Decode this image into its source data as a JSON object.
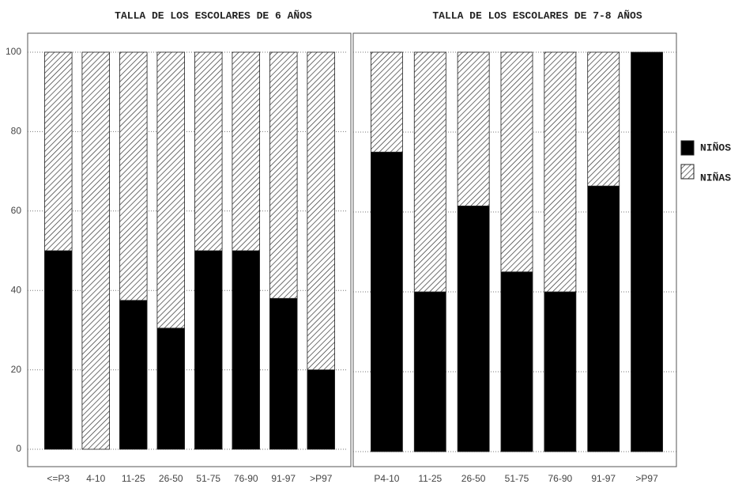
{
  "chart_data": [
    {
      "type": "bar",
      "stacked": true,
      "title": "TALLA DE LOS ESCOLARES DE 6 AÑOS",
      "categories": [
        "<=P3",
        "4-10",
        "11-25",
        "26-50",
        "51-75",
        "76-90",
        "91-97",
        ">P97"
      ],
      "series": [
        {
          "name": "NIÑOS",
          "color": "#000000",
          "values": [
            50,
            0,
            37.5,
            30.5,
            50,
            50,
            38,
            20
          ]
        },
        {
          "name": "NIÑAS",
          "color": "hatch",
          "values": [
            50,
            100,
            62.5,
            69.5,
            50,
            50,
            62,
            80
          ]
        }
      ],
      "ylim": [
        0,
        100
      ],
      "yticks": [
        0,
        20,
        40,
        60,
        80,
        100
      ],
      "grid": true
    },
    {
      "type": "bar",
      "stacked": true,
      "title": "TALLA DE LOS ESCOLARES DE 7-8 AÑOS",
      "categories": [
        "P4-10",
        "11-25",
        "26-50",
        "51-75",
        "76-90",
        "91-97",
        ">P97"
      ],
      "series": [
        {
          "name": "NIÑOS",
          "color": "#000000",
          "values": [
            75,
            40,
            61.5,
            45,
            40,
            66.5,
            100
          ]
        },
        {
          "name": "NIÑAS",
          "color": "hatch",
          "values": [
            25,
            60,
            38.5,
            55,
            60,
            33.5,
            0
          ]
        }
      ],
      "ylim": [
        0,
        100
      ],
      "yticks": [
        0,
        20,
        40,
        60,
        80,
        100
      ],
      "grid": true,
      "legend": "right"
    }
  ]
}
